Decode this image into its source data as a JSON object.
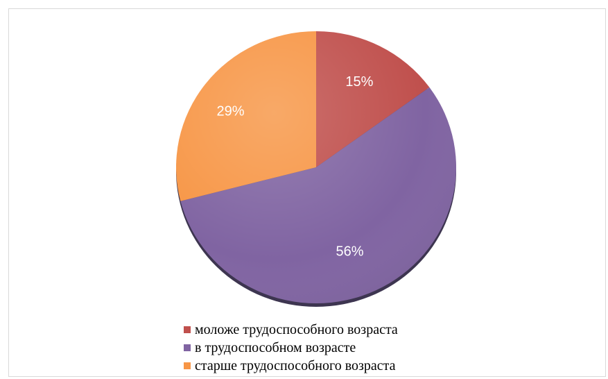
{
  "chart_data": {
    "type": "pie",
    "title": "",
    "slices": [
      {
        "name": "моложе трудоспособного возраста",
        "value": 15,
        "label": "15%",
        "color": "#c0504d"
      },
      {
        "name": "в трудоспособном возрасте",
        "value": 56,
        "label": "56%",
        "color": "#8064a2"
      },
      {
        "name": "старше трудоспособного возраста",
        "value": 29,
        "label": "29%",
        "color": "#f79646"
      }
    ],
    "legend_position": "bottom"
  }
}
